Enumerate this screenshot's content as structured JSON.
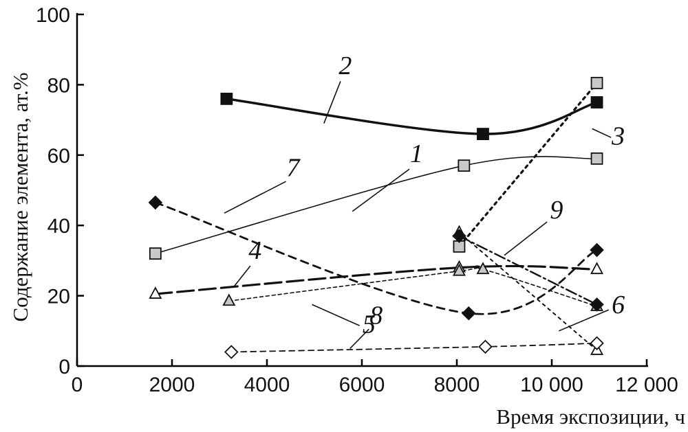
{
  "chart_data": {
    "type": "scatter",
    "xlabel": "Время экспозиции, ч",
    "ylabel": "Содержание элемента, ат.%",
    "xlim": [
      0,
      12000
    ],
    "ylim": [
      0,
      100
    ],
    "x_ticks": [
      {
        "value": 0,
        "label": "0"
      },
      {
        "value": 2000,
        "label": "2000"
      },
      {
        "value": 4000,
        "label": "4000"
      },
      {
        "value": 6000,
        "label": "6000"
      },
      {
        "value": 8000,
        "label": "8000"
      },
      {
        "value": 10000,
        "label": "10 000"
      },
      {
        "value": 12000,
        "label": "12 000"
      }
    ],
    "y_ticks": [
      {
        "value": 0,
        "label": "0"
      },
      {
        "value": 20,
        "label": "20"
      },
      {
        "value": 40,
        "label": "40"
      },
      {
        "value": 60,
        "label": "60"
      },
      {
        "value": 80,
        "label": "80"
      },
      {
        "value": 100,
        "label": "100"
      }
    ],
    "grid": false,
    "legend": "none",
    "series": [
      {
        "label": "1",
        "marker": "square-gray",
        "line": "solid-thin",
        "points": [
          [
            1650,
            32
          ],
          [
            8150,
            57
          ],
          [
            10950,
            59
          ]
        ],
        "label_at": [
          7150,
          58
        ],
        "leader": [
          [
            7000,
            56
          ],
          [
            5800,
            44
          ]
        ]
      },
      {
        "label": "2",
        "marker": "square-black",
        "line": "solid-thick",
        "points": [
          [
            3150,
            76
          ],
          [
            8550,
            66
          ],
          [
            10950,
            75
          ]
        ],
        "label_at": [
          5650,
          83
        ],
        "leader": [
          [
            5550,
            81
          ],
          [
            5200,
            69
          ]
        ]
      },
      {
        "label": "3",
        "marker": "square-gray",
        "line": "dotted-bold",
        "points": [
          [
            8050,
            34
          ],
          [
            10950,
            80.5
          ]
        ],
        "label_at": [
          11400,
          63
        ],
        "leader": [
          [
            11250,
            65
          ],
          [
            10850,
            67.5
          ]
        ]
      },
      {
        "label": "4",
        "marker": "triangle-white",
        "line": "long-dash",
        "points": [
          [
            1650,
            20.5
          ],
          [
            8050,
            28
          ],
          [
            10950,
            27.5
          ]
        ],
        "label_at": [
          3750,
          30.5
        ],
        "leader": [
          [
            3650,
            28.5
          ],
          [
            3300,
            22.5
          ]
        ]
      },
      {
        "label": "5",
        "marker": "triangle-gray",
        "line": "short-dash",
        "points": [
          [
            3200,
            18.5
          ],
          [
            8050,
            27
          ],
          [
            8550,
            27.5
          ],
          [
            10950,
            17
          ]
        ],
        "label_at": [
          6150,
          9.5
        ],
        "leader": [
          [
            5950,
            11.5
          ],
          [
            4950,
            17.5
          ]
        ]
      },
      {
        "label": "6",
        "marker": "triangle-white",
        "line": "dotted",
        "points": [
          [
            8050,
            38
          ],
          [
            10950,
            4.5
          ]
        ],
        "label_at": [
          11400,
          15
        ],
        "leader": [
          [
            11200,
            16
          ],
          [
            10150,
            10
          ]
        ]
      },
      {
        "label": "7",
        "marker": "diamond-black",
        "line": "dashed-bold",
        "points": [
          [
            1650,
            46.5
          ],
          [
            8250,
            15
          ],
          [
            10950,
            33
          ]
        ],
        "label_at": [
          4550,
          54
        ],
        "leader": [
          [
            4400,
            52.5
          ],
          [
            3100,
            43.5
          ]
        ]
      },
      {
        "label": "8",
        "marker": "diamond-white",
        "line": "dashed",
        "points": [
          [
            3250,
            4
          ],
          [
            8600,
            5.5
          ],
          [
            10950,
            6.5
          ]
        ],
        "label_at": [
          6300,
          12
        ],
        "leader": [
          [
            6150,
            10.5
          ],
          [
            5750,
            5
          ]
        ]
      },
      {
        "label": "9",
        "marker": "diamond-black",
        "line": "dash-dot",
        "points": [
          [
            8050,
            37
          ],
          [
            10950,
            17.5
          ]
        ],
        "label_at": [
          10100,
          42
        ],
        "leader": [
          [
            9900,
            41
          ],
          [
            9000,
            31.5
          ]
        ]
      }
    ]
  }
}
